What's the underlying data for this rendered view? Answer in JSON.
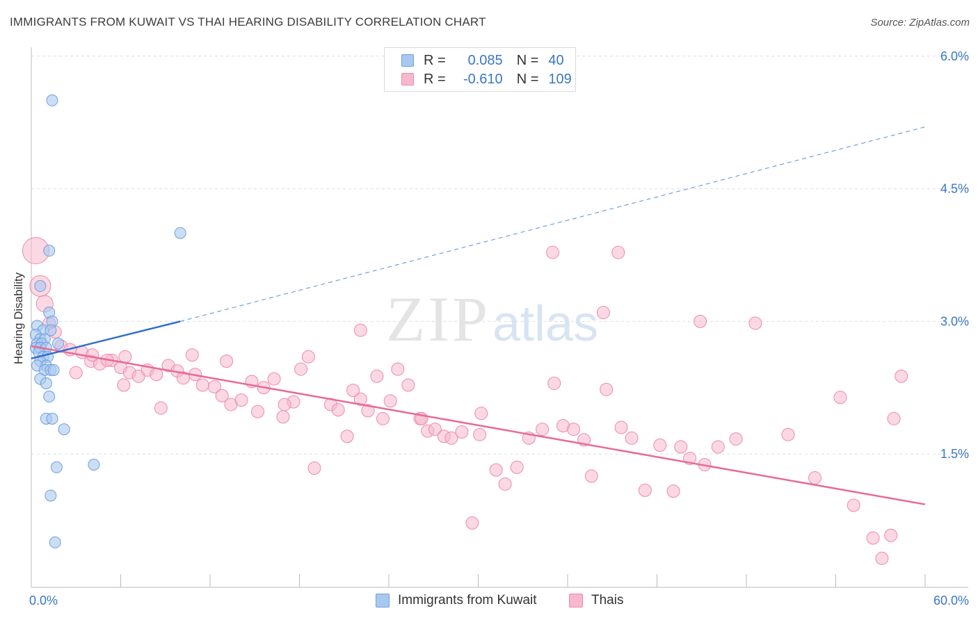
{
  "header": {
    "title": "IMMIGRANTS FROM KUWAIT VS THAI HEARING DISABILITY CORRELATION CHART",
    "source": "Source: ZipAtlas.com"
  },
  "watermark": {
    "zip": "ZIP",
    "atlas": "atlas"
  },
  "legend": {
    "series1": {
      "r_label": "R =",
      "r_value": "0.085",
      "n_label": "N =",
      "n_value": "40"
    },
    "series2": {
      "r_label": "R =",
      "r_value": "-0.610",
      "n_label": "N =",
      "n_value": "109"
    }
  },
  "colors": {
    "blue_fill": "#a9c8f0",
    "blue_stroke": "#6d9fdd",
    "blue_line": "#2f6fcf",
    "pink_fill": "#f7b8cc",
    "pink_stroke": "#ec8aaa",
    "pink_line": "#e86a96",
    "axis_text": "#3a76c4",
    "grid": "#dddddd"
  },
  "chart_data": {
    "type": "scatter",
    "title": "IMMIGRANTS FROM KUWAIT VS THAI HEARING DISABILITY CORRELATION CHART",
    "xlabel": "",
    "ylabel": "Hearing Disability",
    "xlim": [
      0,
      60
    ],
    "ylim": [
      0,
      6.3
    ],
    "x_tick_labels": [
      "0.0%",
      "60.0%"
    ],
    "y_ticks": [
      1.5,
      3.0,
      4.5,
      6.0
    ],
    "y_tick_labels": [
      "1.5%",
      "3.0%",
      "4.5%",
      "6.0%"
    ],
    "grid": "horizontal dashed",
    "legend_position": "top-center",
    "series": [
      {
        "name": "Immigrants from Kuwait",
        "color": "#6d9fdd",
        "r": 0.085,
        "n": 40,
        "trend_solid": [
          [
            0.0,
            2.58
          ],
          [
            10.0,
            3.0
          ]
        ],
        "trend_dashed": [
          [
            10.0,
            3.0
          ],
          [
            60.0,
            5.2
          ]
        ],
        "points": [
          [
            1.4,
            5.5
          ],
          [
            0.6,
            3.4
          ],
          [
            1.2,
            3.8
          ],
          [
            10.0,
            4.0
          ],
          [
            1.2,
            3.1
          ],
          [
            1.4,
            3.0
          ],
          [
            0.4,
            2.95
          ],
          [
            0.8,
            2.9
          ],
          [
            1.3,
            2.9
          ],
          [
            0.3,
            2.85
          ],
          [
            0.6,
            2.8
          ],
          [
            0.9,
            2.8
          ],
          [
            0.4,
            2.75
          ],
          [
            0.7,
            2.75
          ],
          [
            1.8,
            2.75
          ],
          [
            0.3,
            2.7
          ],
          [
            0.6,
            2.7
          ],
          [
            1.0,
            2.7
          ],
          [
            0.5,
            2.65
          ],
          [
            0.8,
            2.6
          ],
          [
            1.1,
            2.6
          ],
          [
            0.6,
            2.55
          ],
          [
            1.0,
            2.5
          ],
          [
            0.4,
            2.5
          ],
          [
            0.9,
            2.45
          ],
          [
            1.3,
            2.45
          ],
          [
            1.5,
            2.45
          ],
          [
            0.6,
            2.35
          ],
          [
            1.0,
            2.3
          ],
          [
            1.2,
            2.15
          ],
          [
            1.0,
            1.9
          ],
          [
            1.4,
            1.9
          ],
          [
            2.2,
            1.78
          ],
          [
            1.7,
            1.35
          ],
          [
            4.2,
            1.38
          ],
          [
            1.3,
            1.03
          ],
          [
            1.6,
            0.5
          ]
        ]
      },
      {
        "name": "Thais",
        "color": "#ec8aaa",
        "r": -0.61,
        "n": 109,
        "trend": [
          [
            0.0,
            2.72
          ],
          [
            60.0,
            0.93
          ]
        ],
        "points": [
          [
            0.3,
            3.8
          ],
          [
            0.6,
            3.4
          ],
          [
            0.9,
            3.2
          ],
          [
            1.2,
            2.98
          ],
          [
            1.6,
            2.88
          ],
          [
            2.0,
            2.72
          ],
          [
            2.6,
            2.68
          ],
          [
            3.4,
            2.65
          ],
          [
            3.0,
            2.42
          ],
          [
            4.0,
            2.55
          ],
          [
            4.6,
            2.52
          ],
          [
            5.4,
            2.56
          ],
          [
            6.0,
            2.48
          ],
          [
            6.3,
            2.6
          ],
          [
            6.6,
            2.42
          ],
          [
            7.2,
            2.38
          ],
          [
            7.8,
            2.45
          ],
          [
            8.4,
            2.4
          ],
          [
            9.2,
            2.5
          ],
          [
            9.8,
            2.44
          ],
          [
            10.2,
            2.36
          ],
          [
            11.0,
            2.4
          ],
          [
            11.5,
            2.28
          ],
          [
            12.3,
            2.26
          ],
          [
            12.8,
            2.16
          ],
          [
            13.4,
            2.06
          ],
          [
            14.1,
            2.11
          ],
          [
            14.8,
            2.32
          ],
          [
            15.2,
            1.98
          ],
          [
            15.6,
            2.25
          ],
          [
            16.3,
            2.35
          ],
          [
            16.9,
            1.92
          ],
          [
            17.6,
            2.09
          ],
          [
            18.1,
            2.46
          ],
          [
            18.6,
            2.6
          ],
          [
            19.0,
            1.34
          ],
          [
            20.1,
            2.06
          ],
          [
            20.6,
            2.0
          ],
          [
            21.2,
            1.7
          ],
          [
            21.6,
            2.22
          ],
          [
            22.1,
            2.12
          ],
          [
            22.6,
            1.99
          ],
          [
            23.2,
            2.38
          ],
          [
            23.6,
            1.9
          ],
          [
            24.1,
            2.1
          ],
          [
            24.6,
            2.46
          ],
          [
            25.3,
            2.28
          ],
          [
            26.1,
            1.9
          ],
          [
            26.6,
            1.76
          ],
          [
            27.1,
            1.78
          ],
          [
            27.7,
            1.7
          ],
          [
            28.2,
            1.68
          ],
          [
            28.9,
            1.75
          ],
          [
            29.6,
            0.72
          ],
          [
            30.2,
            1.96
          ],
          [
            31.2,
            1.32
          ],
          [
            31.8,
            1.16
          ],
          [
            32.6,
            1.35
          ],
          [
            33.4,
            1.68
          ],
          [
            34.3,
            1.78
          ],
          [
            35.1,
            2.3
          ],
          [
            35.7,
            1.82
          ],
          [
            36.4,
            1.78
          ],
          [
            37.1,
            1.66
          ],
          [
            37.6,
            1.25
          ],
          [
            38.6,
            2.23
          ],
          [
            39.6,
            1.8
          ],
          [
            40.3,
            1.68
          ],
          [
            41.2,
            1.09
          ],
          [
            42.2,
            1.6
          ],
          [
            43.1,
            1.08
          ],
          [
            43.6,
            1.58
          ],
          [
            45.2,
            1.38
          ],
          [
            46.1,
            1.58
          ],
          [
            47.3,
            1.67
          ],
          [
            48.6,
            2.98
          ],
          [
            44.2,
            1.45
          ],
          [
            50.8,
            1.72
          ],
          [
            52.6,
            1.23
          ],
          [
            54.3,
            2.14
          ],
          [
            55.2,
            0.92
          ],
          [
            56.5,
            0.55
          ],
          [
            57.1,
            0.32
          ],
          [
            57.7,
            0.58
          ],
          [
            58.4,
            2.38
          ],
          [
            57.9,
            1.9
          ],
          [
            35.0,
            3.78
          ],
          [
            22.1,
            2.9
          ],
          [
            13.1,
            2.55
          ],
          [
            6.2,
            2.28
          ],
          [
            8.7,
            2.02
          ],
          [
            10.8,
            2.62
          ],
          [
            17.0,
            2.06
          ],
          [
            26.2,
            1.9
          ],
          [
            30.1,
            1.72
          ],
          [
            38.4,
            3.1
          ],
          [
            39.4,
            3.78
          ],
          [
            44.9,
            3.0
          ],
          [
            4.1,
            2.62
          ],
          [
            5.1,
            2.56
          ]
        ]
      }
    ]
  },
  "bottom_legend": {
    "item1": "Immigrants from Kuwait",
    "item2": "Thais"
  }
}
